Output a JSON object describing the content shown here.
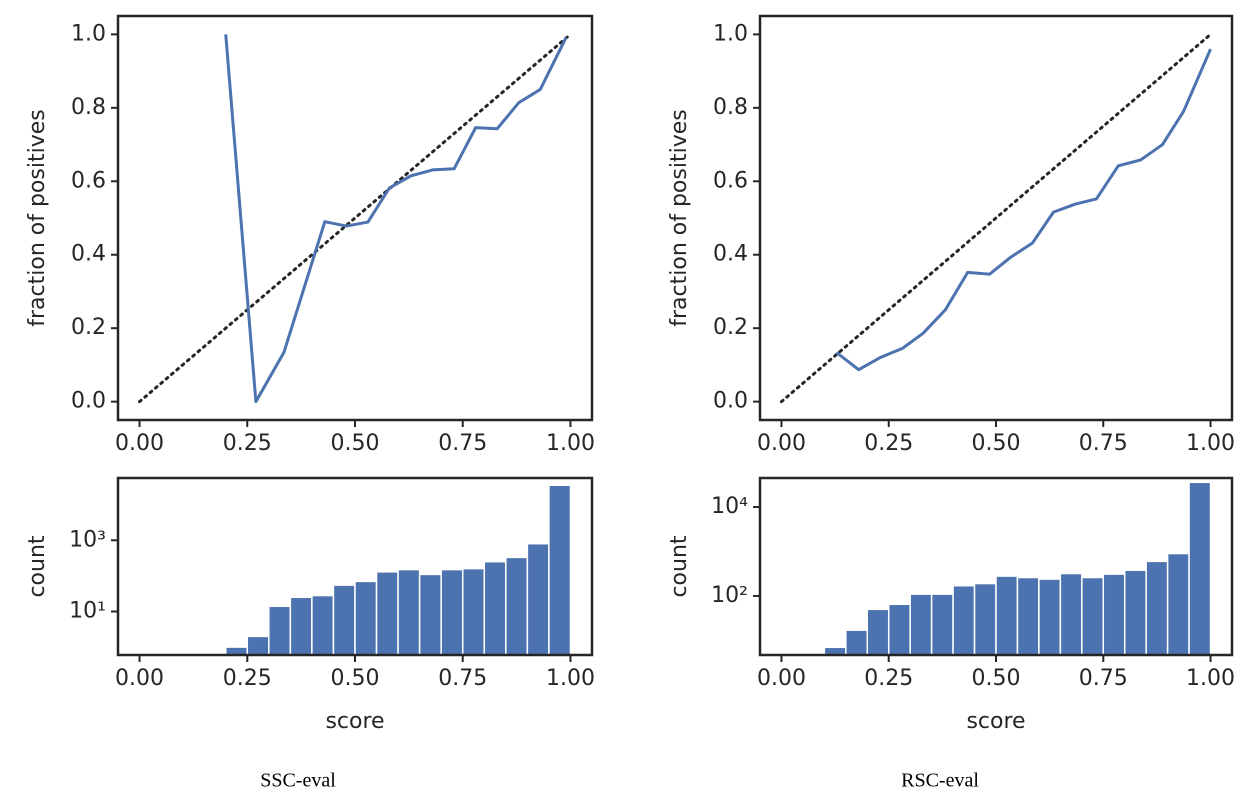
{
  "chart_data": [
    {
      "type": "line",
      "ylabel": "fraction of positives",
      "color": "#4c72b0",
      "x": [
        0.2,
        0.27,
        0.335,
        0.43,
        0.48,
        0.53,
        0.58,
        0.63,
        0.68,
        0.73,
        0.78,
        0.83,
        0.88,
        0.93,
        0.99
      ],
      "values": [
        1.0,
        0.0,
        0.134,
        0.49,
        0.478,
        0.489,
        0.582,
        0.615,
        0.631,
        0.634,
        0.746,
        0.743,
        0.814,
        0.85,
        0.992
      ],
      "reference_line": {
        "x": [
          0,
          1
        ],
        "values": [
          0,
          1
        ],
        "color": "#262626",
        "style": "dotted"
      },
      "xlim": [
        -0.05,
        1.05
      ],
      "ylim": [
        -0.05,
        1.05
      ],
      "xticks": [
        {
          "value": 0,
          "label": "0.00"
        },
        {
          "value": 0.25,
          "label": "0.25"
        },
        {
          "value": 0.5,
          "label": "0.50"
        },
        {
          "value": 0.75,
          "label": "0.75"
        },
        {
          "value": 1,
          "label": "1.00"
        }
      ],
      "yticks": [
        {
          "value": 0,
          "label": "0.0"
        },
        0.2,
        0.4,
        0.6,
        0.8,
        {
          "value": 1,
          "label": "1.0"
        }
      ]
    },
    {
      "type": "histogram",
      "xlabel": "score",
      "ylabel": "count",
      "color": "#4c72b0",
      "log_y": true,
      "bins": [
        0.2,
        0.25,
        0.3,
        0.35,
        0.4,
        0.45,
        0.5,
        0.55,
        0.6,
        0.65,
        0.7,
        0.75,
        0.8,
        0.85,
        0.9,
        0.95,
        1.0
      ],
      "values": [
        1,
        2,
        14,
        25,
        28,
        55,
        70,
        130,
        150,
        110,
        150,
        160,
        250,
        330,
        800,
        35000
      ],
      "xlim": [
        -0.05,
        1.05
      ],
      "ylim": [
        0.6,
        56000
      ],
      "xticks": [
        {
          "value": 0,
          "label": "0.00"
        },
        {
          "value": 0.25,
          "label": "0.25"
        },
        {
          "value": 0.5,
          "label": "0.50"
        },
        {
          "value": 0.75,
          "label": "0.75"
        },
        {
          "value": 1,
          "label": "1.00"
        }
      ],
      "yticks": [
        {
          "value": 10,
          "label": "10¹"
        },
        {
          "value": 1000,
          "label": "10³"
        }
      ]
    },
    {
      "type": "line",
      "ylabel": "fraction of positives",
      "color": "#4c72b0",
      "x": [
        0.128,
        0.18,
        0.23,
        0.282,
        0.33,
        0.382,
        0.434,
        0.485,
        0.534,
        0.585,
        0.634,
        0.685,
        0.734,
        0.785,
        0.837,
        0.888,
        0.937,
        1.0
      ],
      "values": [
        0.134,
        0.087,
        0.12,
        0.145,
        0.186,
        0.25,
        0.352,
        0.347,
        0.393,
        0.432,
        0.516,
        0.538,
        0.552,
        0.642,
        0.658,
        0.7,
        0.79,
        0.96
      ],
      "reference_line": {
        "x": [
          0,
          1
        ],
        "values": [
          0,
          1
        ],
        "color": "#262626",
        "style": "dotted"
      },
      "xlim": [
        -0.05,
        1.05
      ],
      "ylim": [
        -0.05,
        1.05
      ],
      "xticks": [
        {
          "value": 0,
          "label": "0.00"
        },
        {
          "value": 0.25,
          "label": "0.25"
        },
        {
          "value": 0.5,
          "label": "0.50"
        },
        {
          "value": 0.75,
          "label": "0.75"
        },
        {
          "value": 1,
          "label": "1.00"
        }
      ],
      "yticks": [
        {
          "value": 0,
          "label": "0.0"
        },
        0.2,
        0.4,
        0.6,
        0.8,
        {
          "value": 1,
          "label": "1.0"
        }
      ]
    },
    {
      "type": "histogram",
      "xlabel": "score",
      "ylabel": "count",
      "color": "#4c72b0",
      "log_y": true,
      "bins": [
        0.1,
        0.15,
        0.2,
        0.25,
        0.3,
        0.35,
        0.4,
        0.45,
        0.5,
        0.55,
        0.6,
        0.65,
        0.7,
        0.75,
        0.8,
        0.85,
        0.9,
        0.95,
        1.0
      ],
      "values": [
        7,
        17,
        50,
        65,
        110,
        110,
        170,
        190,
        280,
        260,
        240,
        320,
        260,
        310,
        380,
        600,
        900,
        36000
      ],
      "xlim": [
        -0.05,
        1.05
      ],
      "ylim": [
        4.7,
        45000
      ],
      "xticks": [
        {
          "value": 0,
          "label": "0.00"
        },
        {
          "value": 0.25,
          "label": "0.25"
        },
        {
          "value": 0.5,
          "label": "0.50"
        },
        {
          "value": 0.75,
          "label": "0.75"
        },
        {
          "value": 1,
          "label": "1.00"
        }
      ],
      "yticks": [
        {
          "value": 100,
          "label": "10²"
        },
        {
          "value": 10000,
          "label": "10⁴"
        }
      ]
    }
  ],
  "captions": [
    "SSC-eval",
    "RSC-eval"
  ]
}
